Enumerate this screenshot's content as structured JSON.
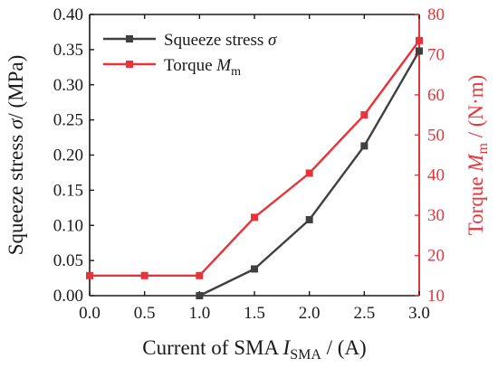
{
  "chart_data": {
    "type": "line",
    "x": [
      0.0,
      0.5,
      1.0,
      1.5,
      2.0,
      2.5,
      3.0
    ],
    "xlim": [
      0.0,
      3.0
    ],
    "xticks": [
      "0.0",
      "0.5",
      "1.0",
      "1.5",
      "2.0",
      "2.5",
      "3.0"
    ],
    "xlabel": {
      "main": "Current of SMA ",
      "var": "I",
      "sub": "SMA",
      "unit": " / (A)"
    },
    "y_left": {
      "label": {
        "main": "Squeeze stress ",
        "var": "σ",
        "unit": "/ (MPa)"
      },
      "lim": [
        0.0,
        0.4
      ],
      "ticks": [
        "0.00",
        "0.05",
        "0.10",
        "0.15",
        "0.20",
        "0.25",
        "0.30",
        "0.35",
        "0.40"
      ],
      "color": "#1a1a1a"
    },
    "y_right": {
      "label": {
        "main": "Torque ",
        "var": "M",
        "sub": "m",
        "unit": " / (N·m)"
      },
      "lim": [
        10,
        80
      ],
      "ticks": [
        "10",
        "20",
        "30",
        "40",
        "50",
        "60",
        "70",
        "80"
      ],
      "color": "#e8333a"
    },
    "series": [
      {
        "name": "Squeeze stress σ",
        "legend": {
          "main": "Squeeze stress ",
          "var": "σ",
          "sub": ""
        },
        "axis": "left",
        "color": "#404040",
        "x": [
          1.0,
          1.5,
          2.0,
          2.5,
          3.0
        ],
        "values": [
          0.0,
          0.038,
          0.108,
          0.213,
          0.348
        ]
      },
      {
        "name": "Torque Mm",
        "legend": {
          "main": "Torque ",
          "var": "M",
          "sub": "m"
        },
        "axis": "right",
        "color": "#e8333a",
        "x": [
          0.0,
          0.5,
          1.0,
          1.5,
          2.0,
          2.5,
          3.0
        ],
        "values": [
          15.0,
          15.0,
          15.0,
          29.5,
          40.5,
          55.0,
          73.5
        ]
      }
    ],
    "legend_position": "top-left",
    "grid": false
  }
}
